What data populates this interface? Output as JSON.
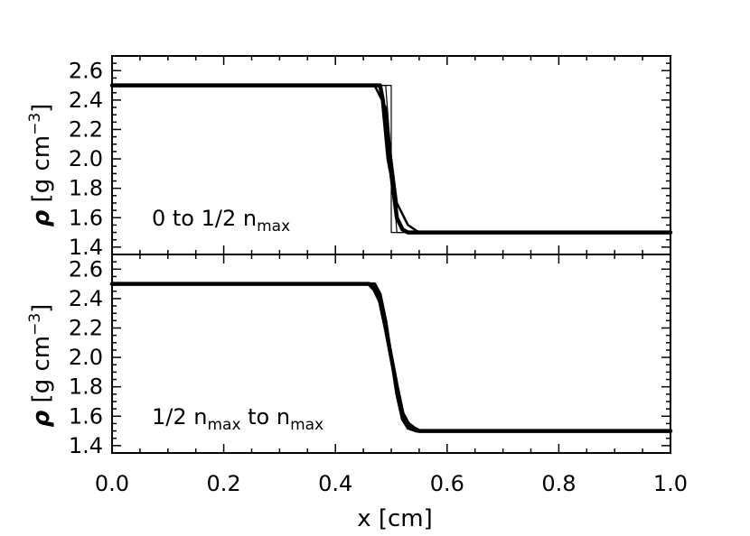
{
  "chart_data": [
    {
      "type": "line",
      "ylabel": "ρ [g cm⁻³]",
      "ylabel_parts": {
        "rho": "ρ",
        "units": "[g cm",
        "exp": "−3",
        "close": "]"
      },
      "annotation": {
        "a": "0 to 1/2 n",
        "a_sub": "max",
        "b": "",
        "b_sub": ""
      },
      "xlim": [
        0.0,
        1.0
      ],
      "ylim": [
        1.35,
        2.7
      ],
      "y_ticks": [
        "1.4",
        "1.6",
        "1.8",
        "2.0",
        "2.2",
        "2.4",
        "2.6"
      ],
      "grid": false,
      "series": [
        {
          "x": [
            0.0,
            0.48,
            0.485,
            0.49,
            0.495,
            0.5,
            0.505,
            0.51,
            0.52,
            0.53,
            1.0
          ],
          "y": [
            2.5,
            2.5,
            2.4,
            2.2,
            2.0,
            1.9,
            1.75,
            1.6,
            1.52,
            1.5,
            1.5
          ]
        },
        {
          "x": [
            0.0,
            0.49,
            0.5,
            0.51,
            1.0
          ],
          "y": [
            2.5,
            2.5,
            2.0,
            1.5,
            1.5
          ]
        },
        {
          "x": [
            0.0,
            0.47,
            0.49,
            0.5,
            0.51,
            0.53,
            0.55,
            1.0
          ],
          "y": [
            2.5,
            2.5,
            2.35,
            2.0,
            1.7,
            1.55,
            1.5,
            1.5
          ]
        },
        {
          "x": [
            0.0,
            0.5,
            0.5,
            1.0
          ],
          "y": [
            2.5,
            2.5,
            1.5,
            1.5
          ]
        }
      ]
    },
    {
      "type": "line",
      "xlabel": "x [cm]",
      "ylabel": "ρ [g cm⁻³]",
      "ylabel_parts": {
        "rho": "ρ",
        "units": "[g cm",
        "exp": "−3",
        "close": "]"
      },
      "annotation": {
        "a": "1/2 n",
        "a_sub": "max",
        "b": " to n",
        "b_sub": "max"
      },
      "xlim": [
        0.0,
        1.0
      ],
      "ylim": [
        1.35,
        2.7
      ],
      "x_ticks": [
        "0.0",
        "0.2",
        "0.4",
        "0.6",
        "0.8",
        "1.0"
      ],
      "y_ticks": [
        "1.4",
        "1.6",
        "1.8",
        "2.0",
        "2.2",
        "2.4",
        "2.6"
      ],
      "grid": false,
      "series": [
        {
          "x": [
            0.0,
            0.46,
            0.47,
            0.48,
            0.49,
            0.5,
            0.51,
            0.52,
            0.53,
            0.54,
            0.55,
            1.0
          ],
          "y": [
            2.5,
            2.5,
            2.46,
            2.38,
            2.2,
            2.0,
            1.8,
            1.62,
            1.55,
            1.52,
            1.5,
            1.5
          ]
        },
        {
          "x": [
            0.0,
            0.47,
            0.48,
            0.49,
            0.5,
            0.51,
            0.52,
            0.53,
            0.545,
            1.0
          ],
          "y": [
            2.5,
            2.5,
            2.43,
            2.25,
            2.0,
            1.75,
            1.58,
            1.52,
            1.5,
            1.5
          ]
        }
      ]
    }
  ]
}
